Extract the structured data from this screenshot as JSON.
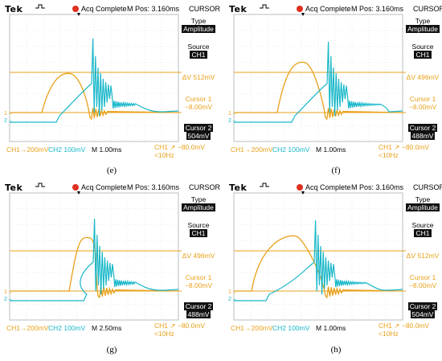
{
  "header": {
    "brand": "Tek",
    "acq_status": "Acq Complete",
    "mpos": "M Pos: 3.160ms",
    "mode": "CURSOR"
  },
  "colors": {
    "ch1": "#e8a11b",
    "ch2": "#18b7c9",
    "acq_dot": "#e0301e"
  },
  "chart_data": [
    {
      "type": "line",
      "caption": "(e)",
      "side": {
        "type_label": "Type",
        "type_value": "Amplitude",
        "source_label": "Source",
        "source_value": "CH1",
        "cursor_readout": "ΔV 512mV",
        "cursor1_label": "Cursor 1",
        "cursor1_value": "−8.00mV",
        "cursor2_label": "Cursor 2",
        "cursor2_value": "504mV"
      },
      "footer": {
        "ch1": "CH1→200mV",
        "ch2": "CH2 100mV",
        "timebase": "M 1.00ms",
        "trigger": "CH1 ↗ −80.0mV",
        "freq": "<10Hz"
      }
    },
    {
      "type": "line",
      "caption": "(f)",
      "side": {
        "type_label": "Type",
        "type_value": "Amplitude",
        "source_label": "Source",
        "source_value": "CH1",
        "cursor_readout": "ΔV 496mV",
        "cursor1_label": "Cursor 1",
        "cursor1_value": "−8.00mV",
        "cursor2_label": "Cursor 2",
        "cursor2_value": "488mV"
      },
      "footer": {
        "ch1": "CH1→200mV",
        "ch2": "CH2 100mV",
        "timebase": "M 1.00ms",
        "trigger": "CH1 ↗ −80.0mV",
        "freq": "<10Hz"
      }
    },
    {
      "type": "line",
      "caption": "(g)",
      "side": {
        "type_label": "Type",
        "type_value": "Amplitude",
        "source_label": "Source",
        "source_value": "CH1",
        "cursor_readout": "ΔV 496mV",
        "cursor1_label": "Cursor 1",
        "cursor1_value": "−8.00mV",
        "cursor2_label": "Cursor 2",
        "cursor2_value": "488mV"
      },
      "footer": {
        "ch1": "CH1→200mV",
        "ch2": "CH2 100mV",
        "timebase": "M 2.50ms",
        "trigger": "CH1 ↗ −80.0mV",
        "freq": "<10Hz"
      }
    },
    {
      "type": "line",
      "caption": "(h)",
      "side": {
        "type_label": "Type",
        "type_value": "Amplitude",
        "source_label": "Source",
        "source_value": "CH1",
        "cursor_readout": "ΔV 512mV",
        "cursor1_label": "Cursor 1",
        "cursor1_value": "−8.00mV",
        "cursor2_label": "Cursor 2",
        "cursor2_value": "504mV"
      },
      "footer": {
        "ch1": "CH1→200mV",
        "ch2": "CH2 100mV",
        "timebase": "M 1.00ms",
        "trigger": "CH1 ↗ −80.0mV",
        "freq": "<10Hz"
      }
    }
  ]
}
